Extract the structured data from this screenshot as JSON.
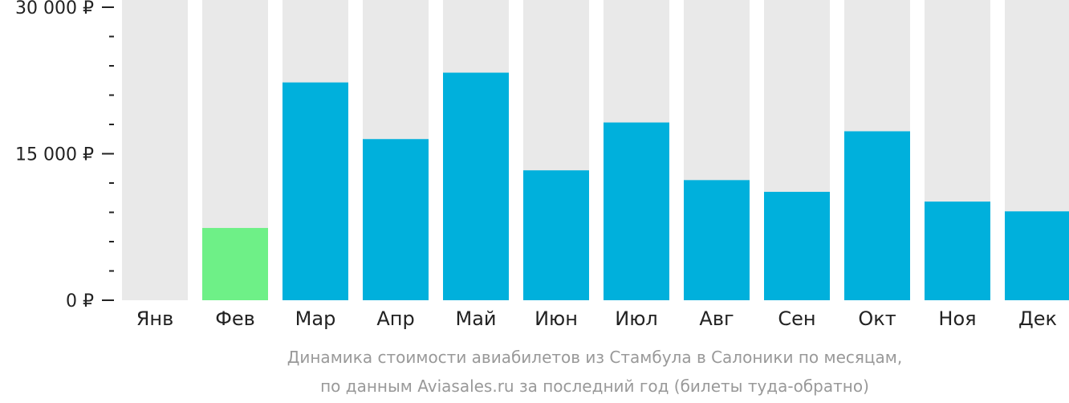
{
  "chart_data": {
    "type": "bar",
    "categories": [
      "Янв",
      "Фев",
      "Мар",
      "Апр",
      "Май",
      "Июн",
      "Июл",
      "Авг",
      "Сен",
      "Окт",
      "Ноя",
      "Дек"
    ],
    "values": [
      null,
      7400,
      22300,
      16500,
      23300,
      13300,
      18200,
      12300,
      11100,
      17300,
      10100,
      9100
    ],
    "ylim": [
      0,
      30000
    ],
    "y_ticks": [
      {
        "value": 0,
        "label": "0 ₽"
      },
      {
        "value": 15000,
        "label": "15 000 ₽"
      },
      {
        "value": 30000,
        "label": "30 000 ₽"
      }
    ],
    "minor_tick_step": 3000,
    "highlight_index": 1,
    "colors": {
      "bar": "#00b0dc",
      "highlight": "#6ef087",
      "background_bar": "#e9e9e9",
      "axis": "#222222"
    },
    "caption": [
      "Динамика стоимости авиабилетов из Стамбула в Салоники по месяцам,",
      "по данным Aviasales.ru за последний год (билеты туда-обратно)"
    ]
  }
}
